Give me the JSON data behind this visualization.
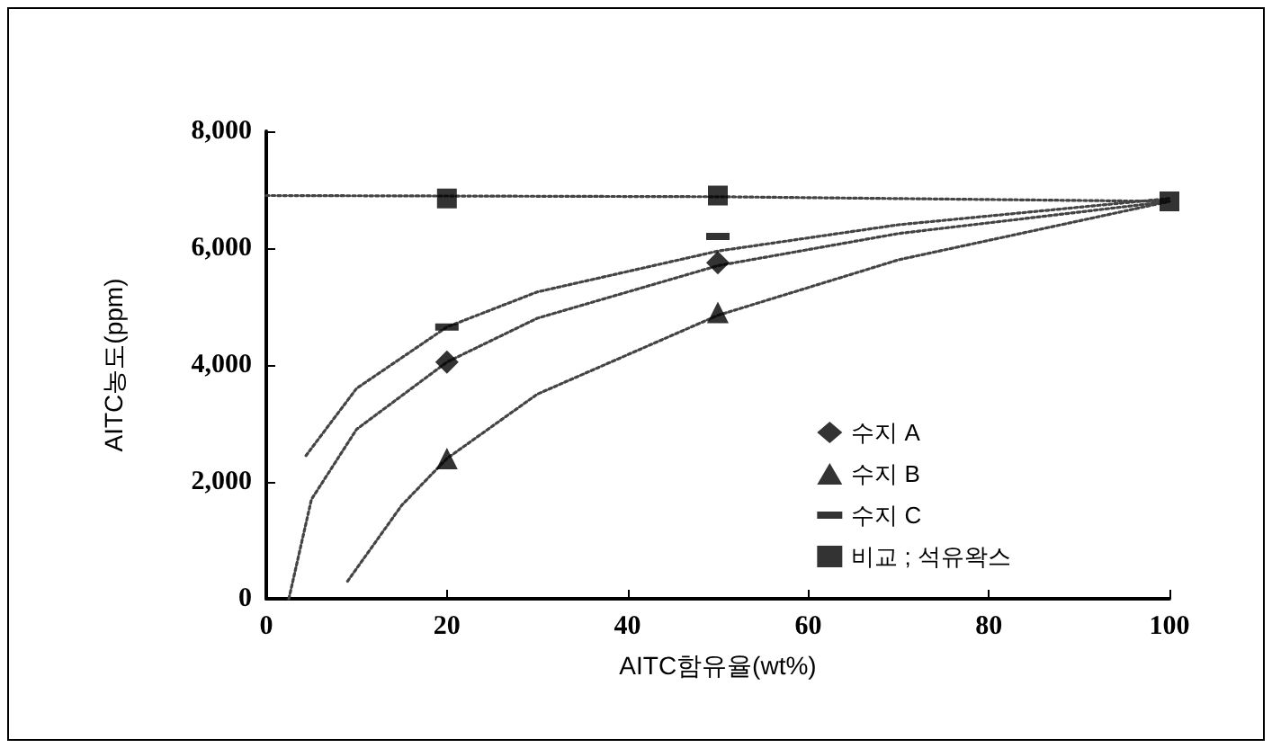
{
  "chart_data": {
    "type": "scatter",
    "xlabel": "AITC함유율(wt%)",
    "ylabel": "AITC농도(ppm)",
    "xlim": [
      0,
      100
    ],
    "xticks": [
      0,
      20,
      40,
      60,
      80,
      100
    ],
    "ylim": [
      0,
      8000
    ],
    "yticks": [
      0,
      {
        "value": 2000,
        "label": "2,000"
      },
      {
        "value": 4000,
        "label": "4,000"
      },
      {
        "value": 6000,
        "label": "6,000"
      },
      {
        "value": 8000,
        "label": "8,000"
      }
    ],
    "grid": false,
    "legend": "bottom right",
    "series": [
      {
        "name": "수지 A",
        "color": "#000000",
        "marker": "diamond",
        "x": [
          20,
          50
        ],
        "values": [
          4050,
          5750
        ]
      },
      {
        "name": "수지 B",
        "color": "#000000",
        "marker": "triangle",
        "x": [
          20,
          50
        ],
        "values": [
          2400,
          4900
        ]
      },
      {
        "name": "수지 C",
        "color": "#000000",
        "x": [
          20,
          50
        ],
        "values": [
          4650,
          6200
        ]
      },
      {
        "name": "비교 ; 석유왁스",
        "color": "#000000",
        "marker": "square",
        "x": [
          20,
          50,
          100
        ],
        "values": [
          6850,
          6900,
          6800
        ]
      },
      {
        "type": "line",
        "color": "#444444",
        "line_style": "dotted",
        "marker": "none",
        "x": [
          2.5,
          5,
          10,
          20,
          30,
          50,
          70,
          100
        ],
        "values": [
          0,
          1700,
          2900,
          4050,
          4800,
          5700,
          6250,
          6800
        ]
      },
      {
        "type": "line",
        "color": "#444444",
        "line_style": "dotted",
        "marker": "none",
        "x": [
          9,
          15,
          20,
          30,
          50,
          70,
          100
        ],
        "values": [
          300,
          1600,
          2400,
          3500,
          4850,
          5800,
          6800
        ]
      },
      {
        "type": "line",
        "color": "#444444",
        "line_style": "dotted",
        "marker": "none",
        "x": [
          4.4,
          10,
          20,
          30,
          50,
          70,
          100
        ],
        "values": [
          2450,
          3600,
          4650,
          5250,
          5950,
          6400,
          6850
        ]
      },
      {
        "type": "line",
        "color": "#444444",
        "line_style": "dotted",
        "marker": "none",
        "x": [
          0,
          50,
          100
        ],
        "values": [
          6900,
          6880,
          6800
        ]
      }
    ]
  }
}
